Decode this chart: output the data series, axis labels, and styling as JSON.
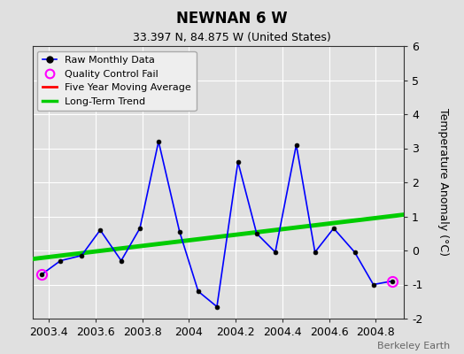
{
  "title": "NEWNAN 6 W",
  "subtitle": "33.397 N, 84.875 W (United States)",
  "watermark": "Berkeley Earth",
  "ylabel": "Temperature Anomaly (°C)",
  "xlim": [
    2003.33,
    2004.92
  ],
  "ylim": [
    -2,
    6
  ],
  "yticks": [
    -2,
    -1,
    0,
    1,
    2,
    3,
    4,
    5,
    6
  ],
  "xticks": [
    2003.4,
    2003.6,
    2003.8,
    2004.0,
    2004.2,
    2004.4,
    2004.6,
    2004.8
  ],
  "xtick_labels": [
    "2003.4",
    "2003.6",
    "2003.8",
    "2004",
    "2004.2",
    "2004.4",
    "2004.6",
    "2004.8"
  ],
  "background_color": "#e0e0e0",
  "plot_bg_color": "#e0e0e0",
  "grid_color": "#ffffff",
  "raw_x": [
    2003.37,
    2003.45,
    2003.54,
    2003.62,
    2003.71,
    2003.79,
    2003.87,
    2003.96,
    2004.04,
    2004.12,
    2004.21,
    2004.29,
    2004.37,
    2004.46,
    2004.54,
    2004.62,
    2004.71,
    2004.79,
    2004.87
  ],
  "raw_y": [
    -0.7,
    -0.3,
    -0.15,
    0.6,
    -0.3,
    0.65,
    3.2,
    0.55,
    -1.2,
    -1.65,
    2.6,
    0.5,
    -0.05,
    3.1,
    -0.05,
    0.65,
    -0.05,
    -1.0,
    -0.9
  ],
  "qc_fail_indices": [
    0,
    18
  ],
  "trend_x": [
    2003.33,
    2004.92
  ],
  "trend_y": [
    -0.25,
    1.05
  ],
  "raw_color": "#0000ff",
  "raw_marker_color": "#000000",
  "qc_color": "#ff00ff",
  "trend_color": "#00cc00",
  "moving_avg_color": "#ff0000",
  "raw_lw": 1.2,
  "trend_lw": 3.5,
  "title_fontsize": 12,
  "subtitle_fontsize": 9,
  "tick_fontsize": 9,
  "ylabel_fontsize": 9,
  "legend_fontsize": 8,
  "watermark_fontsize": 8
}
